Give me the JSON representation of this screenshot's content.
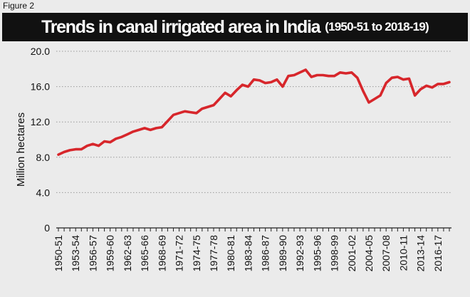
{
  "header": {
    "figure_label": "Figure 2",
    "title": "Trends in canal irrigated area in India",
    "subtitle": "(1950-51 to 2018-19)"
  },
  "colors": {
    "background": "#ebebeb",
    "title_bar": "#111111",
    "line": "#d7262b",
    "grid": "#9a9a9a",
    "axis": "#222222"
  },
  "chart_data": {
    "type": "line",
    "title": "Trends in canal irrigated area in India",
    "subtitle": "(1950-51 to 2018-19)",
    "xlabel": "",
    "ylabel": "Million hectares",
    "ylim": [
      0,
      20
    ],
    "yticks": [
      0,
      4,
      8,
      12,
      16,
      20
    ],
    "ytick_labels": [
      "0",
      "4.0",
      "8.0",
      "12.0",
      "16.0",
      "20.0"
    ],
    "grid": "horizontal dotted",
    "x": [
      "1950-51",
      "1951-52",
      "1952-53",
      "1953-54",
      "1954-55",
      "1955-56",
      "1956-57",
      "1957-58",
      "1958-59",
      "1959-60",
      "1960-61",
      "1961-62",
      "1962-63",
      "1963-64",
      "1964-65",
      "1965-66",
      "1966-67",
      "1967-68",
      "1968-69",
      "1969-70",
      "1970-71",
      "1971-72",
      "1972-73",
      "1973-74",
      "1974-75",
      "1975-76",
      "1976-77",
      "1977-78",
      "1978-79",
      "1979-80",
      "1980-81",
      "1981-82",
      "1982-83",
      "1983-84",
      "1984-85",
      "1985-86",
      "1986-87",
      "1987-88",
      "1988-89",
      "1989-90",
      "1990-91",
      "1991-92",
      "1992-93",
      "1993-94",
      "1994-95",
      "1995-96",
      "1996-97",
      "1997-98",
      "1998-99",
      "1999-00",
      "2000-01",
      "2001-02",
      "2002-03",
      "2003-04",
      "2004-05",
      "2005-06",
      "2006-07",
      "2007-08",
      "2008-09",
      "2009-10",
      "2010-11",
      "2011-12",
      "2012-13",
      "2013-14",
      "2014-15",
      "2015-16",
      "2016-17",
      "2017-18",
      "2018-19"
    ],
    "x_tick_labels": [
      "1950-51",
      "1953-54",
      "1956-57",
      "1959-60",
      "1962-63",
      "1965-66",
      "1968-69",
      "1971-72",
      "1974-75",
      "1977-78",
      "1980-81",
      "1983-84",
      "1986-87",
      "1989-90",
      "1992-93",
      "1995-96",
      "1998-99",
      "2001-02",
      "2004-05",
      "2007-08",
      "2010-11",
      "2013-14",
      "2016-17"
    ],
    "series": [
      {
        "name": "",
        "color": "#d7262b",
        "values": [
          8.3,
          8.6,
          8.8,
          8.9,
          8.9,
          9.3,
          9.5,
          9.3,
          9.8,
          9.7,
          10.1,
          10.3,
          10.6,
          10.9,
          11.1,
          11.3,
          11.1,
          11.3,
          11.4,
          12.1,
          12.8,
          13.0,
          13.2,
          13.1,
          13.0,
          13.5,
          13.7,
          13.9,
          14.6,
          15.3,
          14.9,
          15.6,
          16.2,
          16.0,
          16.8,
          16.7,
          16.4,
          16.5,
          16.8,
          16.0,
          17.2,
          17.3,
          17.6,
          17.9,
          17.1,
          17.3,
          17.3,
          17.2,
          17.2,
          17.6,
          17.5,
          17.6,
          17.0,
          15.5,
          14.2,
          14.6,
          15.0,
          16.4,
          17.0,
          17.1,
          16.8,
          16.9,
          15.0,
          15.7,
          16.1,
          15.9,
          16.3,
          16.3,
          16.5
        ]
      }
    ]
  }
}
